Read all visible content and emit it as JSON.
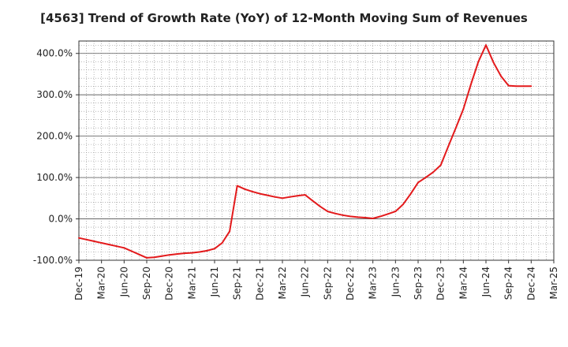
{
  "chart_data": {
    "type": "line",
    "title": "[4563]  Trend of Growth Rate (YoY) of 12-Month Moving Sum of Revenues",
    "xlabel": "",
    "ylabel": "",
    "ylim": [
      -100,
      430
    ],
    "y_ticks": [
      {
        "value": 400,
        "label": "400.0%"
      },
      {
        "value": 300,
        "label": "300.0%"
      },
      {
        "value": 200,
        "label": "200.0%"
      },
      {
        "value": 100,
        "label": "100.0%"
      },
      {
        "value": 0,
        "label": "0.0%"
      },
      {
        "value": -100,
        "label": "-100.0%"
      }
    ],
    "x_range": [
      "2019-12",
      "2025-03"
    ],
    "x_ticks": [
      "Dec-19",
      "Mar-20",
      "Jun-20",
      "Sep-20",
      "Dec-20",
      "Mar-21",
      "Jun-21",
      "Sep-21",
      "Dec-21",
      "Mar-22",
      "Jun-22",
      "Sep-22",
      "Dec-22",
      "Mar-23",
      "Jun-23",
      "Sep-23",
      "Dec-23",
      "Mar-24",
      "Jun-24",
      "Sep-24",
      "Dec-24",
      "Mar-25"
    ],
    "grid": true,
    "line_color": "#e31a1c",
    "series": [
      {
        "x": [
          "2019-12",
          "2020-01",
          "2020-02",
          "2020-03",
          "2020-04",
          "2020-05",
          "2020-06",
          "2020-07",
          "2020-08",
          "2020-09",
          "2020-10",
          "2020-11",
          "2020-12",
          "2021-01",
          "2021-02",
          "2021-03",
          "2021-04",
          "2021-05",
          "2021-06",
          "2021-07",
          "2021-08",
          "2021-09",
          "2021-10",
          "2021-11",
          "2021-12",
          "2022-01",
          "2022-02",
          "2022-03",
          "2022-04",
          "2022-05",
          "2022-06",
          "2022-07",
          "2022-08",
          "2022-09",
          "2022-10",
          "2022-11",
          "2022-12",
          "2023-01",
          "2023-02",
          "2023-03",
          "2023-04",
          "2023-05",
          "2023-06",
          "2023-07",
          "2023-08",
          "2023-09",
          "2023-10",
          "2023-11",
          "2023-12",
          "2024-01",
          "2024-02",
          "2024-03",
          "2024-04",
          "2024-05",
          "2024-06",
          "2024-07",
          "2024-08",
          "2024-09",
          "2024-10",
          "2024-11",
          "2024-12"
        ],
        "values": [
          -46,
          -50,
          -54,
          -58,
          -62,
          -66,
          -70,
          -78,
          -86,
          -94,
          -93,
          -90,
          -87,
          -85,
          -83,
          -82,
          -80,
          -77,
          -72,
          -58,
          -30,
          80,
          72,
          66,
          61,
          57,
          53,
          50,
          53,
          56,
          58,
          44,
          30,
          18,
          13,
          9,
          6,
          4,
          3,
          1,
          6,
          12,
          18,
          35,
          60,
          88,
          100,
          113,
          130,
          175,
          220,
          265,
          325,
          380,
          420,
          378,
          345,
          322,
          321,
          321,
          321
        ]
      }
    ]
  }
}
